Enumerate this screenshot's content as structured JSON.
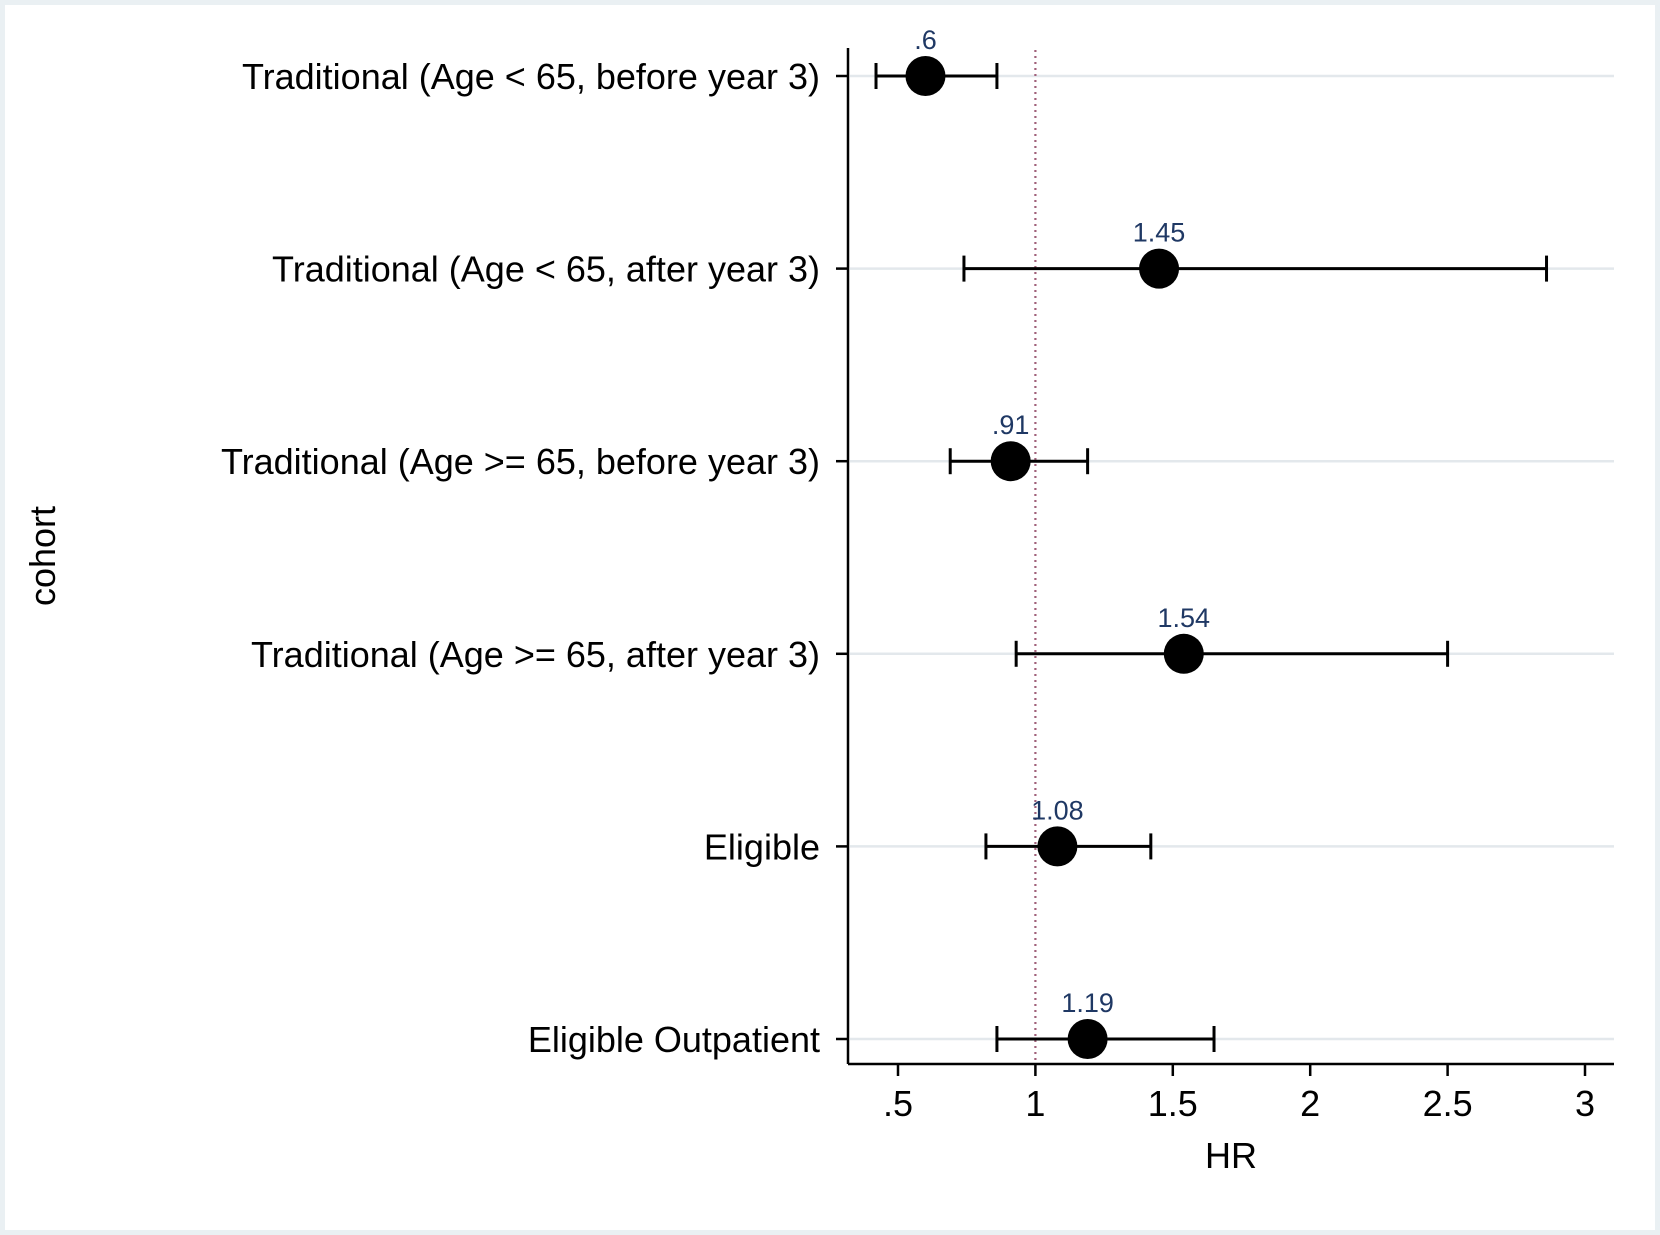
{
  "chart_data": {
    "type": "scatter",
    "xlabel": "HR",
    "ylabel": "cohort",
    "xlim": [
      0.4,
      3.1
    ],
    "xticks": [
      {
        "value": 0.5,
        "label": ".5"
      },
      {
        "value": 1,
        "label": "1"
      },
      {
        "value": 1.5,
        "label": "1.5"
      },
      {
        "value": 2,
        "label": "2"
      },
      {
        "value": 2.5,
        "label": "2.5"
      },
      {
        "value": 3,
        "label": "3"
      }
    ],
    "reference_line": 1,
    "grid": true,
    "rows": [
      {
        "label": "Traditional (Age < 65, before year 3)",
        "hr": 0.6,
        "hr_label": ".6",
        "lower": 0.42,
        "upper": 0.86
      },
      {
        "label": "Traditional (Age < 65, after year 3)",
        "hr": 1.45,
        "hr_label": "1.45",
        "lower": 0.74,
        "upper": 2.86
      },
      {
        "label": "Traditional (Age >= 65, before year 3)",
        "hr": 0.91,
        "hr_label": ".91",
        "lower": 0.69,
        "upper": 1.19
      },
      {
        "label": "Traditional (Age >= 65, after year 3)",
        "hr": 1.54,
        "hr_label": "1.54",
        "lower": 0.93,
        "upper": 2.5
      },
      {
        "label": "Eligible",
        "hr": 1.08,
        "hr_label": "1.08",
        "lower": 0.82,
        "upper": 1.42
      },
      {
        "label": "Eligible Outpatient",
        "hr": 1.19,
        "hr_label": "1.19",
        "lower": 0.86,
        "upper": 1.65
      }
    ],
    "colors": {
      "page_background": "#eaf0f3",
      "plot_background": "#ffffff",
      "marker": "#000000",
      "data_label": "#1f3864",
      "gridline": "#e3e8ec",
      "reference_line": "#a0607a"
    }
  }
}
